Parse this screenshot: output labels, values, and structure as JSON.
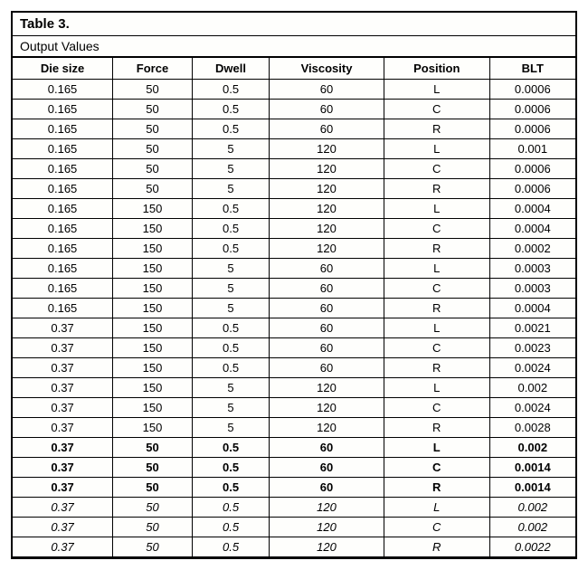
{
  "table": {
    "title": "Table 3.",
    "subtitle": "Output Values",
    "columns": [
      "Die size",
      "Force",
      "Dwell",
      "Viscosity",
      "Position",
      "BLT"
    ],
    "rows": [
      {
        "die_size": "0.165",
        "force": "50",
        "dwell": "0.5",
        "viscosity": "60",
        "position": "L",
        "blt": "0.0006",
        "style": "normal"
      },
      {
        "die_size": "0.165",
        "force": "50",
        "dwell": "0.5",
        "viscosity": "60",
        "position": "C",
        "blt": "0.0006",
        "style": "normal"
      },
      {
        "die_size": "0.165",
        "force": "50",
        "dwell": "0.5",
        "viscosity": "60",
        "position": "R",
        "blt": "0.0006",
        "style": "normal"
      },
      {
        "die_size": "0.165",
        "force": "50",
        "dwell": "5",
        "viscosity": "120",
        "position": "L",
        "blt": "0.001",
        "style": "normal"
      },
      {
        "die_size": "0.165",
        "force": "50",
        "dwell": "5",
        "viscosity": "120",
        "position": "C",
        "blt": "0.0006",
        "style": "normal"
      },
      {
        "die_size": "0.165",
        "force": "50",
        "dwell": "5",
        "viscosity": "120",
        "position": "R",
        "blt": "0.0006",
        "style": "normal"
      },
      {
        "die_size": "0.165",
        "force": "150",
        "dwell": "0.5",
        "viscosity": "120",
        "position": "L",
        "blt": "0.0004",
        "style": "normal"
      },
      {
        "die_size": "0.165",
        "force": "150",
        "dwell": "0.5",
        "viscosity": "120",
        "position": "C",
        "blt": "0.0004",
        "style": "normal"
      },
      {
        "die_size": "0.165",
        "force": "150",
        "dwell": "0.5",
        "viscosity": "120",
        "position": "R",
        "blt": "0.0002",
        "style": "normal"
      },
      {
        "die_size": "0.165",
        "force": "150",
        "dwell": "5",
        "viscosity": "60",
        "position": "L",
        "blt": "0.0003",
        "style": "normal"
      },
      {
        "die_size": "0.165",
        "force": "150",
        "dwell": "5",
        "viscosity": "60",
        "position": "C",
        "blt": "0.0003",
        "style": "normal"
      },
      {
        "die_size": "0.165",
        "force": "150",
        "dwell": "5",
        "viscosity": "60",
        "position": "R",
        "blt": "0.0004",
        "style": "normal"
      },
      {
        "die_size": "0.37",
        "force": "150",
        "dwell": "0.5",
        "viscosity": "60",
        "position": "L",
        "blt": "0.0021",
        "style": "normal"
      },
      {
        "die_size": "0.37",
        "force": "150",
        "dwell": "0.5",
        "viscosity": "60",
        "position": "C",
        "blt": "0.0023",
        "style": "normal"
      },
      {
        "die_size": "0.37",
        "force": "150",
        "dwell": "0.5",
        "viscosity": "60",
        "position": "R",
        "blt": "0.0024",
        "style": "normal"
      },
      {
        "die_size": "0.37",
        "force": "150",
        "dwell": "5",
        "viscosity": "120",
        "position": "L",
        "blt": "0.002",
        "style": "normal"
      },
      {
        "die_size": "0.37",
        "force": "150",
        "dwell": "5",
        "viscosity": "120",
        "position": "C",
        "blt": "0.0024",
        "style": "normal"
      },
      {
        "die_size": "0.37",
        "force": "150",
        "dwell": "5",
        "viscosity": "120",
        "position": "R",
        "blt": "0.0028",
        "style": "normal"
      },
      {
        "die_size": "0.37",
        "force": "50",
        "dwell": "0.5",
        "viscosity": "60",
        "position": "L",
        "blt": "0.002",
        "style": "bold"
      },
      {
        "die_size": "0.37",
        "force": "50",
        "dwell": "0.5",
        "viscosity": "60",
        "position": "C",
        "blt": "0.0014",
        "style": "bold"
      },
      {
        "die_size": "0.37",
        "force": "50",
        "dwell": "0.5",
        "viscosity": "60",
        "position": "R",
        "blt": "0.0014",
        "style": "bold"
      },
      {
        "die_size": "0.37",
        "force": "50",
        "dwell": "0.5",
        "viscosity": "120",
        "position": "L",
        "blt": "0.002",
        "style": "italic"
      },
      {
        "die_size": "0.37",
        "force": "50",
        "dwell": "0.5",
        "viscosity": "120",
        "position": "C",
        "blt": "0.002",
        "style": "italic"
      },
      {
        "die_size": "0.37",
        "force": "50",
        "dwell": "0.5",
        "viscosity": "120",
        "position": "R",
        "blt": "0.0022",
        "style": "italic"
      }
    ]
  }
}
